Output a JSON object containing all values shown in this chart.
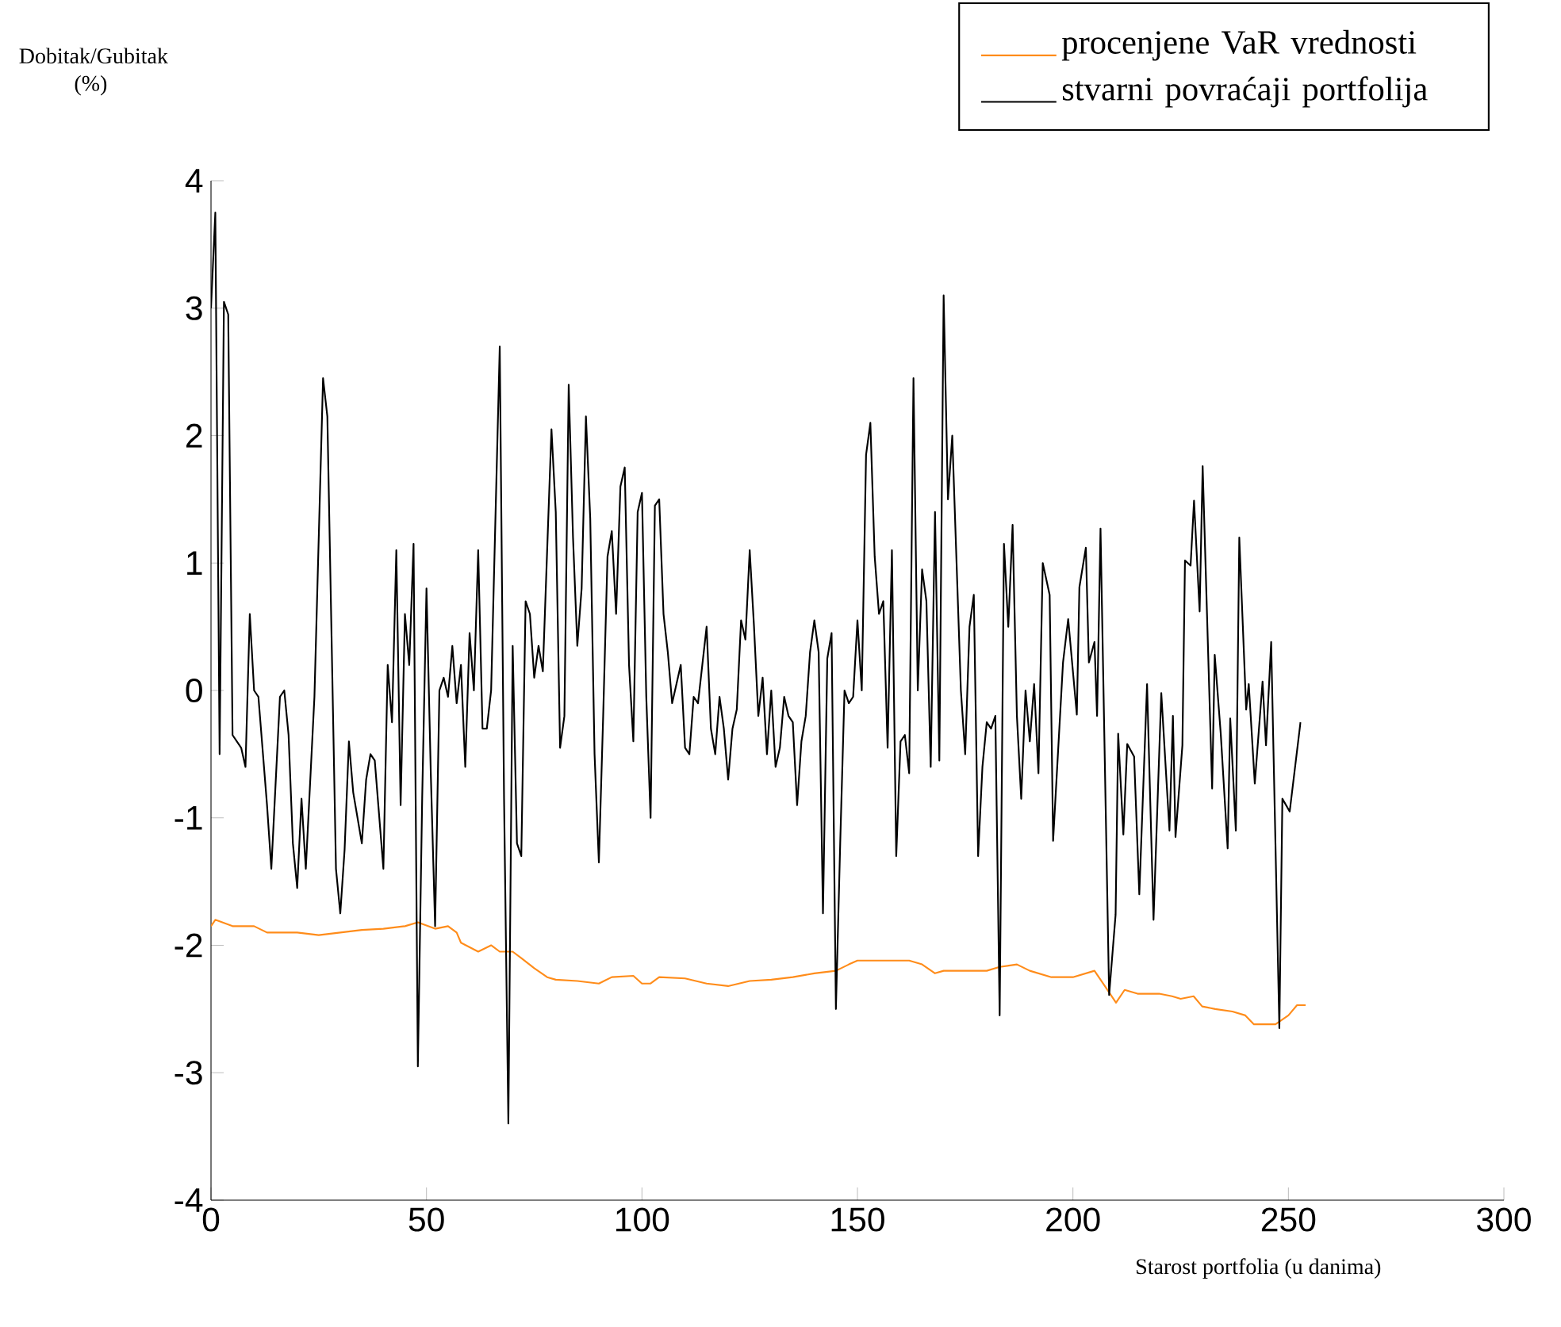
{
  "chart_data": {
    "type": "line",
    "xlabel": "Starost portfolia (u danima)",
    "ylabel": "Dobitak/Gubitak (%)",
    "xlim": [
      0,
      300
    ],
    "xticks": [
      0,
      50,
      100,
      150,
      200,
      250,
      300
    ],
    "ylim": [
      -4,
      4
    ],
    "yticks": [
      -4,
      -3,
      -2,
      -1,
      0,
      1,
      2,
      3,
      4
    ],
    "legend": "top right",
    "grid": false,
    "marker": "none",
    "line_style": "solid",
    "series": [
      {
        "name": "procenjene VaR vrednosti",
        "color": "#ff8c1a",
        "x": [
          0,
          1,
          5,
          10,
          13,
          20,
          25,
          30,
          35,
          40,
          45,
          48,
          52,
          55,
          57,
          58,
          62,
          65,
          67,
          70,
          72,
          75,
          78,
          80,
          85,
          90,
          93,
          98,
          100,
          102,
          104,
          110,
          115,
          120,
          125,
          130,
          135,
          140,
          145,
          148,
          150,
          155,
          162,
          165,
          168,
          170,
          175,
          180,
          183,
          187,
          190,
          195,
          200,
          205,
          207,
          210,
          212,
          215,
          220,
          223,
          225,
          228,
          230,
          233,
          237,
          240,
          242,
          247,
          250,
          252,
          254
        ],
        "values": [
          -1.85,
          -1.8,
          -1.85,
          -1.85,
          -1.9,
          -1.9,
          -1.92,
          -1.9,
          -1.88,
          -1.87,
          -1.85,
          -1.82,
          -1.87,
          -1.85,
          -1.9,
          -1.98,
          -2.05,
          -2.0,
          -2.05,
          -2.05,
          -2.1,
          -2.18,
          -2.25,
          -2.27,
          -2.28,
          -2.3,
          -2.25,
          -2.24,
          -2.3,
          -2.3,
          -2.25,
          -2.26,
          -2.3,
          -2.32,
          -2.28,
          -2.27,
          -2.25,
          -2.22,
          -2.2,
          -2.15,
          -2.12,
          -2.12,
          -2.12,
          -2.15,
          -2.22,
          -2.2,
          -2.2,
          -2.2,
          -2.17,
          -2.15,
          -2.2,
          -2.25,
          -2.25,
          -2.2,
          -2.3,
          -2.45,
          -2.35,
          -2.38,
          -2.38,
          -2.4,
          -2.42,
          -2.4,
          -2.48,
          -2.5,
          -2.52,
          -2.55,
          -2.62,
          -2.62,
          -2.55,
          -2.47,
          -2.47
        ]
      },
      {
        "name": "stvarni povraćaji portfolija",
        "color": "#000000",
        "x": [
          0,
          1,
          2,
          3,
          4,
          5,
          7,
          8,
          9,
          10,
          11,
          13,
          14,
          16,
          17,
          18,
          19,
          20,
          21,
          22,
          24,
          26,
          27,
          29,
          30,
          31,
          32,
          33,
          35,
          36,
          37,
          38,
          40,
          41,
          42,
          43,
          44,
          45,
          46,
          47,
          48,
          49,
          50,
          51,
          52,
          53,
          54,
          55,
          56,
          57,
          58,
          59,
          60,
          61,
          62,
          63,
          64,
          65,
          67,
          68,
          69,
          70,
          71,
          72,
          73,
          74,
          75,
          76,
          77,
          79,
          80,
          81,
          82,
          83,
          84,
          85,
          86,
          87,
          88,
          89,
          90,
          91,
          92,
          93,
          94,
          95,
          96,
          97,
          98,
          99,
          100,
          101,
          102,
          103,
          104,
          105,
          106,
          107,
          108,
          109,
          110,
          111,
          112,
          113,
          114,
          115,
          116,
          117,
          118,
          119,
          120,
          121,
          122,
          123,
          124,
          125,
          126,
          127,
          128,
          129,
          130,
          131,
          132,
          133,
          134,
          135,
          136,
          137,
          138,
          139,
          140,
          141,
          142,
          143,
          144,
          145,
          146,
          147,
          148,
          149,
          150,
          151,
          152,
          153,
          154,
          155,
          156,
          157,
          158,
          159,
          160,
          161,
          162,
          163,
          164,
          165,
          166,
          167,
          168,
          169,
          170,
          171,
          172,
          173,
          174,
          175,
          176,
          177,
          178,
          179,
          180,
          181,
          182,
          183,
          184,
          185,
          186,
          187,
          188,
          189,
          190,
          191,
          192,
          193,
          194.6,
          195.4,
          197.7,
          198.9,
          200.9,
          201.5,
          203,
          203.7,
          205,
          205.6,
          206.4,
          208.4,
          209.9,
          210.5,
          211.7,
          212.6,
          214.2,
          215.4,
          217.2,
          218.7,
          220.5,
          222.4,
          223.2,
          223.8,
          225.4,
          226,
          227.3,
          228.1,
          229.4,
          230.1,
          232.3,
          232.9,
          234.3,
          235.9,
          236.5,
          237.8,
          238.6,
          240.2,
          240.8,
          242.2,
          244,
          244.8,
          246,
          247.9,
          248.6,
          250.3,
          252.8
        ],
        "values": [
          3.0,
          3.75,
          -0.5,
          3.05,
          2.95,
          -0.35,
          -0.45,
          -0.6,
          0.6,
          0.0,
          -0.05,
          -0.9,
          -1.4,
          -0.05,
          0.0,
          -0.35,
          -1.2,
          -1.55,
          -0.85,
          -1.4,
          -0.05,
          2.45,
          2.15,
          -1.4,
          -1.75,
          -1.25,
          -0.4,
          -0.8,
          -1.2,
          -0.7,
          -0.5,
          -0.55,
          -1.4,
          0.2,
          -0.25,
          1.1,
          -0.9,
          0.6,
          0.2,
          1.15,
          -2.95,
          -0.85,
          0.8,
          -0.65,
          -1.85,
          0.0,
          0.1,
          -0.05,
          0.35,
          -0.1,
          0.2,
          -0.6,
          0.45,
          0.0,
          1.1,
          -0.3,
          -0.3,
          0.0,
          2.7,
          -0.85,
          -3.4,
          0.35,
          -1.2,
          -1.3,
          0.7,
          0.6,
          0.1,
          0.35,
          0.15,
          2.05,
          1.4,
          -0.45,
          -0.2,
          2.4,
          1.2,
          0.35,
          0.8,
          2.15,
          1.35,
          -0.5,
          -1.35,
          -0.2,
          1.05,
          1.25,
          0.6,
          1.6,
          1.75,
          0.2,
          -0.4,
          1.4,
          1.55,
          -0.05,
          -1.0,
          1.45,
          1.5,
          0.6,
          0.3,
          -0.1,
          0.05,
          0.2,
          -0.45,
          -0.5,
          -0.05,
          -0.1,
          0.2,
          0.5,
          -0.3,
          -0.5,
          -0.05,
          -0.3,
          -0.7,
          -0.3,
          -0.15,
          0.55,
          0.4,
          1.1,
          0.5,
          -0.2,
          0.1,
          -0.5,
          0.0,
          -0.6,
          -0.45,
          -0.05,
          -0.2,
          -0.25,
          -0.9,
          -0.4,
          -0.2,
          0.3,
          0.55,
          0.3,
          -1.75,
          0.25,
          0.45,
          -2.5,
          -1.2,
          0.0,
          -0.1,
          -0.05,
          0.55,
          0.0,
          1.85,
          2.1,
          1.05,
          0.6,
          0.7,
          -0.45,
          1.1,
          -1.3,
          -0.4,
          -0.35,
          -0.65,
          2.45,
          0.0,
          0.95,
          0.7,
          -0.6,
          1.4,
          -0.55,
          3.1,
          1.5,
          2.0,
          1.0,
          0.0,
          -0.5,
          0.5,
          0.75,
          -1.3,
          -0.6,
          -0.25,
          -0.3,
          -0.2,
          -2.55,
          1.15,
          0.5,
          1.3,
          -0.2,
          -0.85,
          0.0,
          -0.4,
          0.05,
          -0.65,
          1.0,
          0.75,
          -1.18,
          0.22,
          0.56,
          -0.19,
          0.81,
          1.12,
          0.22,
          0.38,
          -0.2,
          1.27,
          -2.39,
          -1.76,
          -0.34,
          -1.13,
          -0.42,
          -0.52,
          -1.6,
          0.05,
          -1.8,
          -0.02,
          -1.1,
          -0.2,
          -1.15,
          -0.43,
          1.02,
          0.98,
          1.49,
          0.62,
          1.76,
          -0.77,
          0.28,
          -0.34,
          -1.24,
          -0.22,
          -1.1,
          1.2,
          -0.15,
          0.05,
          -0.73,
          0.07,
          -0.43,
          0.38,
          -2.65,
          -0.85,
          -0.95,
          -0.25
        ]
      }
    ]
  }
}
